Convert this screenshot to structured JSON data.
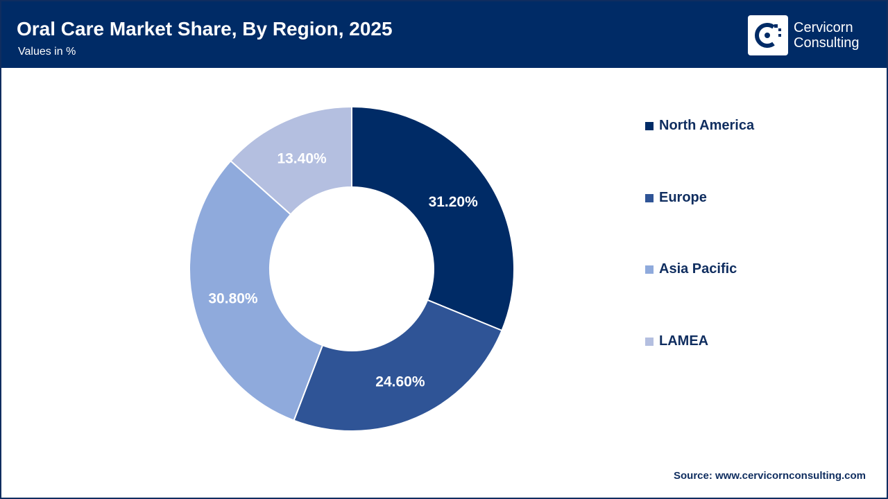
{
  "header": {
    "title": "Oral Care Market Share, By Region, 2025",
    "subtitle": "Values in %"
  },
  "logo": {
    "line1": "Cervicorn",
    "line2": "Consulting"
  },
  "chart_data": {
    "type": "pie",
    "variant": "donut",
    "title": "Oral Care Market Share, By Region, 2025",
    "subtitle": "Values in %",
    "categories": [
      "North America",
      "Europe",
      "Asia Pacific",
      "LAMEA"
    ],
    "values": [
      31.2,
      24.6,
      30.8,
      13.4
    ],
    "labels": [
      "31.20%",
      "24.60%",
      "30.80%",
      "13.40%"
    ],
    "colors": [
      "#002b66",
      "#2f5496",
      "#8faadc",
      "#b4bfe0"
    ],
    "label_colors": [
      "#ffffff",
      "#ffffff",
      "#ffffff",
      "#ffffff"
    ],
    "legend_position": "right",
    "start_angle": "12 o'clock",
    "direction": "clockwise"
  },
  "footer": {
    "source": "Source: www.cervicornconsulting.com"
  }
}
